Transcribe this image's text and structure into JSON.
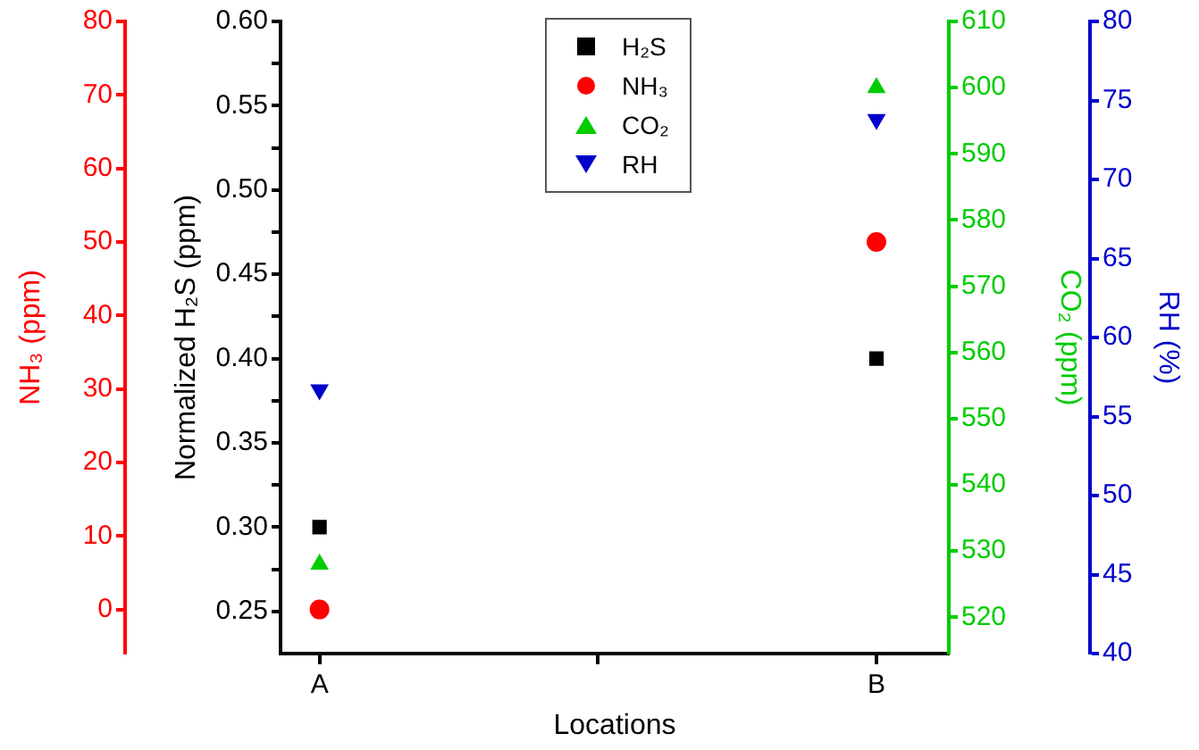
{
  "chart_data": [
    {
      "type": "scatter",
      "xlabel": "Locations",
      "ylabel": "Normalized H₂S (ppm)",
      "categories": [
        "A",
        "B"
      ],
      "series": [
        {
          "name": "H₂S",
          "color": "#000000",
          "marker": "square",
          "values": [
            0.3,
            0.4
          ]
        }
      ],
      "ylim": [
        0.225,
        0.6
      ],
      "yticks": [
        0.25,
        {
          "value": 0.275,
          "label": null
        },
        {
          "value": 0.3,
          "label": "0.30"
        },
        {
          "value": 0.325,
          "label": null
        },
        0.35,
        {
          "value": 0.375,
          "label": null
        },
        {
          "value": 0.4,
          "label": "0.40"
        },
        {
          "value": 0.425,
          "label": null
        },
        0.45,
        {
          "value": 0.475,
          "label": null
        },
        {
          "value": 0.5,
          "label": "0.50"
        },
        {
          "value": 0.525,
          "label": null
        },
        0.55,
        {
          "value": 0.575,
          "label": null
        },
        {
          "value": 0.6,
          "label": "0.60"
        }
      ],
      "grid": false,
      "legend": "top"
    },
    {
      "type": "scatter",
      "ylabel": "NH₃ (ppm)",
      "y2label": "CO₂ (ppm)",
      "y3label": "RH (%)",
      "categories": [
        null,
        null
      ],
      "series": [
        {
          "name": "NH₃",
          "color": "#ff0000",
          "marker": "circle",
          "values": [
            0,
            50
          ]
        },
        {
          "name": "CO₂",
          "color": "#00cc00",
          "marker": "triangle",
          "axis": "y2",
          "values": [
            528,
            600
          ]
        },
        {
          "name": "RH",
          "color": "#0000cc",
          "marker": "triangle-down",
          "axis": "y3",
          "values": [
            56.7,
            73.8
          ]
        }
      ],
      "ylim": [
        -6,
        80
      ],
      "yticks": [
        0,
        10,
        20,
        30,
        40,
        50,
        60,
        70,
        80
      ],
      "y2lim": [
        514.5,
        610
      ],
      "y2ticks": [
        520,
        530,
        540,
        550,
        560,
        570,
        580,
        590,
        600,
        610
      ],
      "y3lim": [
        40,
        80
      ],
      "y3ticks": [
        40,
        45,
        50,
        55,
        60,
        65,
        70,
        75,
        80
      ],
      "tick_labels": "y",
      "grid": false,
      "legend": "top"
    }
  ]
}
